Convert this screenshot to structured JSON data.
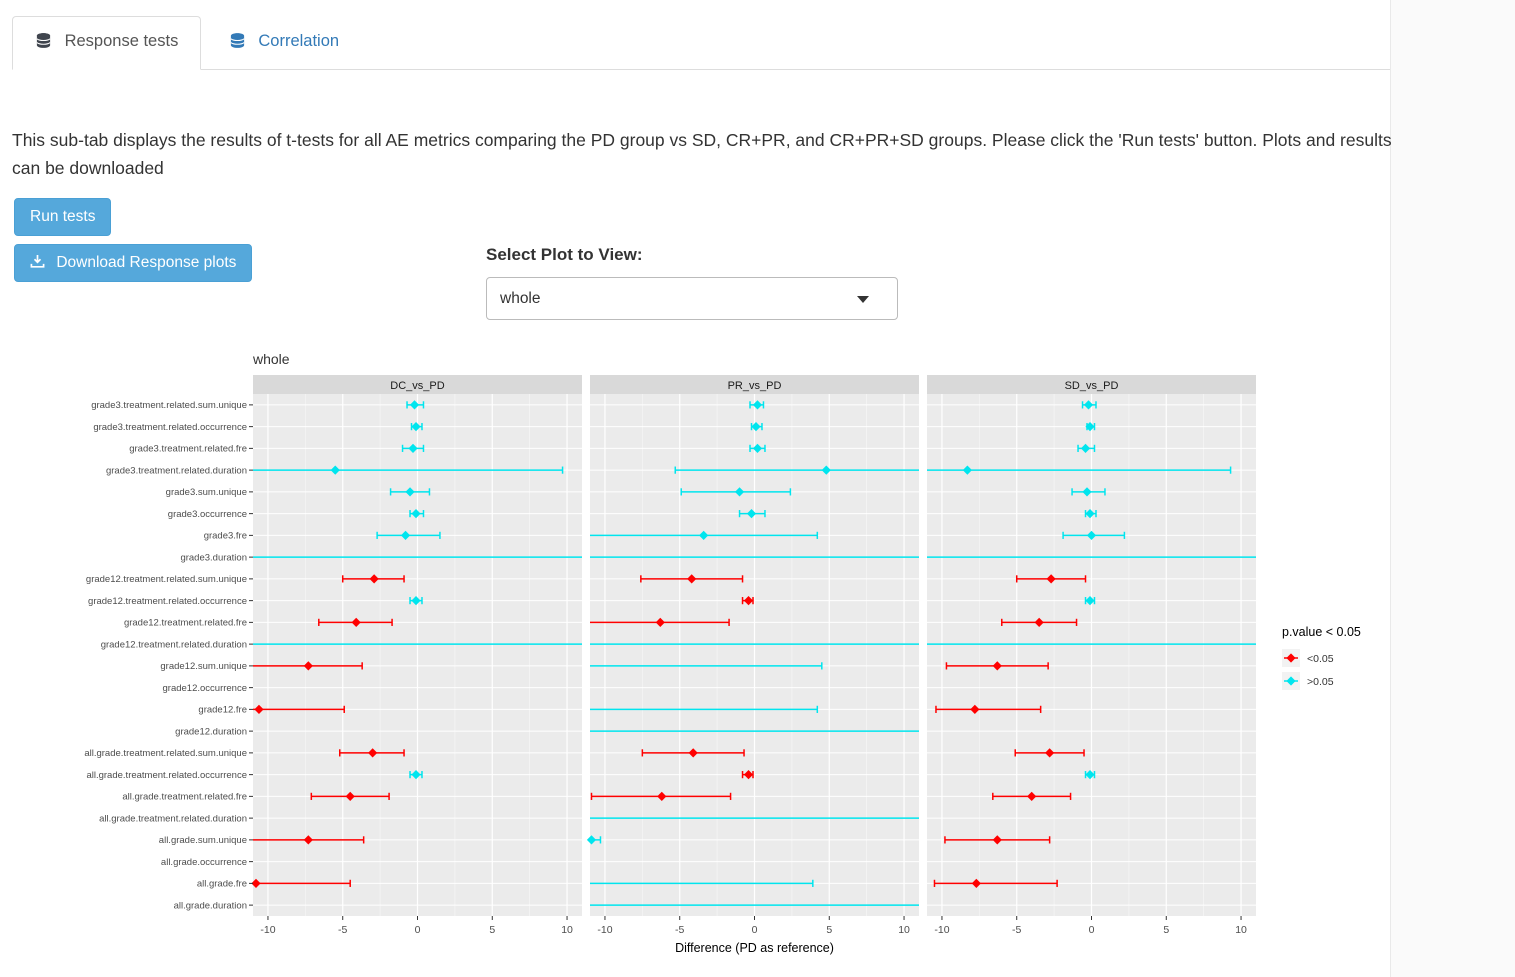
{
  "tabs": {
    "response": "Response tests",
    "correlation": "Correlation"
  },
  "description": "This sub-tab displays the results of t-tests for all AE metrics comparing the PD group vs SD, CR+PR, and CR+PR+SD groups. Please click the 'Run tests' button. Plots and results can be downloaded",
  "buttons": {
    "run": "Run tests",
    "download": "Download Response plots"
  },
  "select_plot": {
    "label": "Select Plot to View:",
    "value": "whole"
  },
  "chart_data": {
    "type": "scatter",
    "subtype": "forest",
    "title": "whole",
    "facets": [
      "DC_vs_PD",
      "PR_vs_PD",
      "SD_vs_PD"
    ],
    "xlabel": "Difference (PD as reference)",
    "xticks": [
      -10,
      -5,
      0,
      5,
      10
    ],
    "xlim": [
      -11,
      11
    ],
    "legend": {
      "title": "p.value < 0.05",
      "entries": [
        {
          "label": "<0.05",
          "color": "#FF0000"
        },
        {
          "label": ">0.05",
          "color": "#00E5EE"
        }
      ]
    },
    "categories": [
      "grade3.treatment.related.sum.unique",
      "grade3.treatment.related.occurrence",
      "grade3.treatment.related.fre",
      "grade3.treatment.related.duration",
      "grade3.sum.unique",
      "grade3.occurrence",
      "grade3.fre",
      "grade3.duration",
      "grade12.treatment.related.sum.unique",
      "grade12.treatment.related.occurrence",
      "grade12.treatment.related.fre",
      "grade12.treatment.related.duration",
      "grade12.sum.unique",
      "grade12.occurrence",
      "grade12.fre",
      "grade12.duration",
      "all.grade.treatment.related.sum.unique",
      "all.grade.treatment.related.occurrence",
      "all.grade.treatment.related.fre",
      "all.grade.treatment.related.duration",
      "all.grade.sum.unique",
      "all.grade.occurrence",
      "all.grade.fre",
      "all.grade.duration"
    ],
    "series": [
      {
        "name": "DC_vs_PD",
        "points": [
          {
            "est": -0.2,
            "lo": -0.7,
            "hi": 0.4,
            "sig": false
          },
          {
            "est": -0.1,
            "lo": -0.4,
            "hi": 0.3,
            "sig": false
          },
          {
            "est": -0.3,
            "lo": -1.0,
            "hi": 0.4,
            "sig": false
          },
          {
            "est": -5.5,
            "lo": -11.3,
            "hi": 9.7,
            "sig": false
          },
          {
            "est": -0.5,
            "lo": -1.8,
            "hi": 0.8,
            "sig": false
          },
          {
            "est": -0.1,
            "lo": -0.5,
            "hi": 0.4,
            "sig": false
          },
          {
            "est": -0.8,
            "lo": -2.7,
            "hi": 1.5,
            "sig": false
          },
          {
            "est": null,
            "lo": -11.3,
            "hi": 11.3,
            "sig": false
          },
          {
            "est": -2.9,
            "lo": -5.0,
            "hi": -0.9,
            "sig": true
          },
          {
            "est": -0.1,
            "lo": -0.5,
            "hi": 0.3,
            "sig": false
          },
          {
            "est": -4.1,
            "lo": -6.6,
            "hi": -1.7,
            "sig": true
          },
          {
            "est": null,
            "lo": -11.3,
            "hi": 11.3,
            "sig": false
          },
          {
            "est": -7.3,
            "lo": -11.0,
            "hi": -3.7,
            "sig": true
          },
          null,
          {
            "est": -10.6,
            "lo": -11.3,
            "hi": -4.9,
            "sig": true
          },
          null,
          {
            "est": -3.0,
            "lo": -5.2,
            "hi": -0.9,
            "sig": true
          },
          {
            "est": -0.1,
            "lo": -0.5,
            "hi": 0.3,
            "sig": false
          },
          {
            "est": -4.5,
            "lo": -7.1,
            "hi": -1.9,
            "sig": true
          },
          null,
          {
            "est": -7.3,
            "lo": -11.1,
            "hi": -3.6,
            "sig": true
          },
          null,
          {
            "est": -10.8,
            "lo": -11.3,
            "hi": -4.5,
            "sig": true
          },
          null
        ]
      },
      {
        "name": "PR_vs_PD",
        "points": [
          {
            "est": 0.2,
            "lo": -0.3,
            "hi": 0.6,
            "sig": false
          },
          {
            "est": 0.1,
            "lo": -0.2,
            "hi": 0.5,
            "sig": false
          },
          {
            "est": 0.2,
            "lo": -0.3,
            "hi": 0.7,
            "sig": false
          },
          {
            "est": 4.8,
            "lo": -5.3,
            "hi": 11.2,
            "sig": false
          },
          {
            "est": -1.0,
            "lo": -4.9,
            "hi": 2.4,
            "sig": false
          },
          {
            "est": -0.2,
            "lo": -1.0,
            "hi": 0.7,
            "sig": false
          },
          {
            "est": -3.4,
            "lo": -11.0,
            "hi": 4.2,
            "sig": false
          },
          {
            "est": null,
            "lo": -11.3,
            "hi": 11.3,
            "sig": false
          },
          {
            "est": -4.2,
            "lo": -7.6,
            "hi": -0.8,
            "sig": true
          },
          {
            "est": -0.4,
            "lo": -0.8,
            "hi": -0.1,
            "sig": true
          },
          {
            "est": -6.3,
            "lo": -11.0,
            "hi": -1.7,
            "sig": true
          },
          {
            "est": null,
            "lo": -11.3,
            "hi": 11.0,
            "sig": false
          },
          {
            "est": null,
            "lo": -11.3,
            "hi": 4.5,
            "sig": false
          },
          null,
          {
            "est": null,
            "lo": -11.3,
            "hi": 4.2,
            "sig": false
          },
          {
            "est": null,
            "lo": -11.3,
            "hi": 11.0,
            "sig": false
          },
          {
            "est": -4.1,
            "lo": -7.5,
            "hi": -0.7,
            "sig": true
          },
          {
            "est": -0.4,
            "lo": -0.8,
            "hi": -0.1,
            "sig": true
          },
          {
            "est": -6.2,
            "lo": -10.9,
            "hi": -1.6,
            "sig": true
          },
          {
            "est": null,
            "lo": -11.3,
            "hi": 11.0,
            "sig": false
          },
          {
            "est": -10.9,
            "lo": -11.3,
            "hi": -10.3,
            "sig": false
          },
          null,
          {
            "est": null,
            "lo": -11.3,
            "hi": 3.9,
            "sig": false
          },
          {
            "est": null,
            "lo": -11.3,
            "hi": 11.0,
            "sig": false
          }
        ]
      },
      {
        "name": "SD_vs_PD",
        "points": [
          {
            "est": -0.2,
            "lo": -0.6,
            "hi": 0.3,
            "sig": false
          },
          {
            "est": -0.1,
            "lo": -0.3,
            "hi": 0.2,
            "sig": false
          },
          {
            "est": -0.4,
            "lo": -0.9,
            "hi": 0.2,
            "sig": false
          },
          {
            "est": -8.3,
            "lo": -11.3,
            "hi": 9.3,
            "sig": false
          },
          {
            "est": -0.3,
            "lo": -1.3,
            "hi": 0.9,
            "sig": false
          },
          {
            "est": -0.1,
            "lo": -0.4,
            "hi": 0.3,
            "sig": false
          },
          {
            "est": 0.0,
            "lo": -1.9,
            "hi": 2.2,
            "sig": false
          },
          {
            "est": null,
            "lo": -11.3,
            "hi": 11.3,
            "sig": false
          },
          {
            "est": -2.7,
            "lo": -5.0,
            "hi": -0.4,
            "sig": true
          },
          {
            "est": -0.1,
            "lo": -0.4,
            "hi": 0.2,
            "sig": false
          },
          {
            "est": -3.5,
            "lo": -6.0,
            "hi": -1.0,
            "sig": true
          },
          {
            "est": null,
            "lo": -11.3,
            "hi": 11.3,
            "sig": false
          },
          {
            "est": -6.3,
            "lo": -9.7,
            "hi": -2.9,
            "sig": true
          },
          null,
          {
            "est": -7.8,
            "lo": -10.4,
            "hi": -3.4,
            "sig": true
          },
          null,
          {
            "est": -2.8,
            "lo": -5.1,
            "hi": -0.5,
            "sig": true
          },
          {
            "est": -0.1,
            "lo": -0.4,
            "hi": 0.2,
            "sig": false
          },
          {
            "est": -4.0,
            "lo": -6.6,
            "hi": -1.4,
            "sig": true
          },
          null,
          {
            "est": -6.3,
            "lo": -9.8,
            "hi": -2.8,
            "sig": true
          },
          null,
          {
            "est": -7.7,
            "lo": -10.5,
            "hi": -2.3,
            "sig": true
          },
          null
        ]
      }
    ]
  }
}
